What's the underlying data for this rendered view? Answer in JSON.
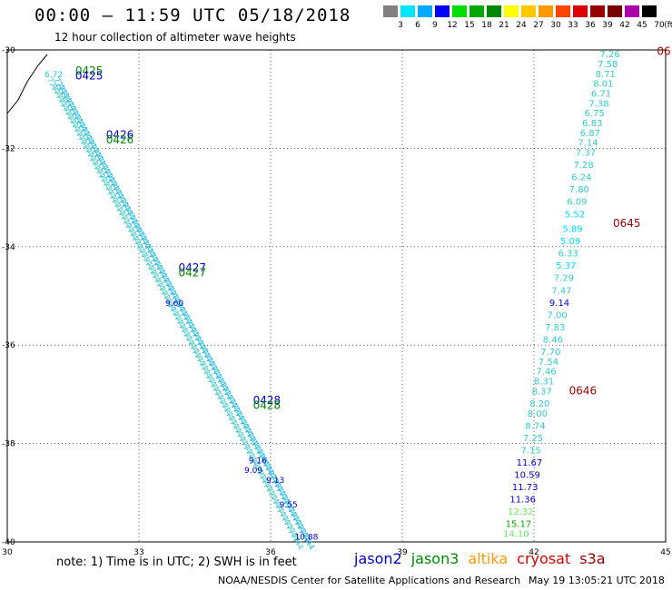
{
  "header": {
    "title": "00:00 – 11:59 UTC 05/18/2018",
    "subtitle": "12 hour collection of altimeter wave heights"
  },
  "colorbar": {
    "unit": "(ft)",
    "labels": [
      "3",
      "6",
      "9",
      "12",
      "15",
      "18",
      "21",
      "24",
      "27",
      "30",
      "33",
      "36",
      "39",
      "42",
      "45",
      "70"
    ],
    "colors": [
      "#808080",
      "#00e5ff",
      "#00aaff",
      "#0000ff",
      "#00dd00",
      "#00aa00",
      "#008800",
      "#ffff00",
      "#ffc800",
      "#ff9900",
      "#ff4400",
      "#dd0000",
      "#990000",
      "#770000",
      "#aa00aa",
      "#000000"
    ]
  },
  "footer": {
    "note": "note: 1) Time is in UTC; 2) SWH is in feet",
    "credit": "NOAA/NESDIS Center for Satellite Applications and Research",
    "timestamp": "May 19 13:05:21 UTC 2018"
  },
  "legend": [
    {
      "name": "jason2",
      "color": "#0000cc"
    },
    {
      "name": "jason3",
      "color": "#008800"
    },
    {
      "name": "altika",
      "color": "#ff9900"
    },
    {
      "name": "cryosat",
      "color": "#dd0000"
    },
    {
      "name": "s3a",
      "color": "#990000"
    }
  ],
  "chart_data": {
    "type": "scatter",
    "xlim": [
      30,
      45
    ],
    "ylim": [
      -40,
      -30
    ],
    "x_ticks": [
      "30",
      "33",
      "36",
      "39",
      "42",
      "45"
    ],
    "y_ticks": [
      "-30",
      "-32",
      "-34",
      "-36",
      "-38",
      "-40"
    ],
    "grid": true,
    "time_labels": [
      {
        "text": "0425",
        "x": 31.55,
        "y": -30.5,
        "color": "#008800"
      },
      {
        "text": "0425",
        "x": 31.55,
        "y": -30.6,
        "color": "#0000cc"
      },
      {
        "text": "0426",
        "x": 32.25,
        "y": -31.8,
        "color": "#0000cc"
      },
      {
        "text": "0426",
        "x": 32.25,
        "y": -31.9,
        "color": "#008800"
      },
      {
        "text": "0427",
        "x": 33.9,
        "y": -34.5,
        "color": "#0000cc"
      },
      {
        "text": "0427",
        "x": 33.9,
        "y": -34.6,
        "color": "#008800"
      },
      {
        "text": "0428",
        "x": 35.6,
        "y": -37.2,
        "color": "#0000cc"
      },
      {
        "text": "0428",
        "x": 35.6,
        "y": -37.3,
        "color": "#008800"
      },
      {
        "text": "0645",
        "x": 43.8,
        "y": -33.6,
        "color": "#990000"
      },
      {
        "text": "0646",
        "x": 42.8,
        "y": -37.0,
        "color": "#990000"
      },
      {
        "text": "06",
        "x": 44.8,
        "y": -30.1,
        "color": "#990000"
      }
    ],
    "west_track_labels": [
      {
        "text": "6.72",
        "x": 30.85,
        "y": -30.55,
        "color": "#33cccc"
      },
      {
        "text": "9.60",
        "x": 33.6,
        "y": -35.2,
        "color": "#0000cc"
      },
      {
        "text": "9.16",
        "x": 35.5,
        "y": -38.4,
        "color": "#0000cc"
      },
      {
        "text": "9.09",
        "x": 35.4,
        "y": -38.6,
        "color": "#0000cc"
      },
      {
        "text": "9.13",
        "x": 35.9,
        "y": -38.8,
        "color": "#0000cc"
      },
      {
        "text": "9.55",
        "x": 36.2,
        "y": -39.3,
        "color": "#0000cc"
      },
      {
        "text": "10.88",
        "x": 36.55,
        "y": -39.95,
        "color": "#0000cc"
      }
    ],
    "east_track": [
      {
        "text": "7.26",
        "x": 43.5,
        "y": -30.15,
        "color": "#33cccc"
      },
      {
        "text": "7.58",
        "x": 43.45,
        "y": -30.35,
        "color": "#33cccc"
      },
      {
        "text": "8.71",
        "x": 43.4,
        "y": -30.55,
        "color": "#33cccc"
      },
      {
        "text": "8.01",
        "x": 43.35,
        "y": -30.75,
        "color": "#33cccc"
      },
      {
        "text": "6.71",
        "x": 43.3,
        "y": -30.95,
        "color": "#33cccc"
      },
      {
        "text": "7.38",
        "x": 43.25,
        "y": -31.15,
        "color": "#33cccc"
      },
      {
        "text": "6.75",
        "x": 43.15,
        "y": -31.35,
        "color": "#33cccc"
      },
      {
        "text": "6.83",
        "x": 43.1,
        "y": -31.55,
        "color": "#33cccc"
      },
      {
        "text": "6.87",
        "x": 43.05,
        "y": -31.75,
        "color": "#33cccc"
      },
      {
        "text": "7.14",
        "x": 43.0,
        "y": -31.95,
        "color": "#33cccc"
      },
      {
        "text": "7.37",
        "x": 42.95,
        "y": -32.15,
        "color": "#33cccc"
      },
      {
        "text": "7.28",
        "x": 42.9,
        "y": -32.4,
        "color": "#33cccc"
      },
      {
        "text": "6.24",
        "x": 42.85,
        "y": -32.65,
        "color": "#33cccc"
      },
      {
        "text": "7.80",
        "x": 42.8,
        "y": -32.9,
        "color": "#33cccc"
      },
      {
        "text": "6.09",
        "x": 42.75,
        "y": -33.15,
        "color": "#33cccc"
      },
      {
        "text": "5.52",
        "x": 42.7,
        "y": -33.4,
        "color": "#00ddff"
      },
      {
        "text": "5.89",
        "x": 42.65,
        "y": -33.7,
        "color": "#00ddff"
      },
      {
        "text": "5.09",
        "x": 42.6,
        "y": -33.95,
        "color": "#00ddff"
      },
      {
        "text": "6.33",
        "x": 42.55,
        "y": -34.2,
        "color": "#33cccc"
      },
      {
        "text": "5.37",
        "x": 42.5,
        "y": -34.45,
        "color": "#00ddff"
      },
      {
        "text": "7.29",
        "x": 42.45,
        "y": -34.7,
        "color": "#33cccc"
      },
      {
        "text": "7.47",
        "x": 42.4,
        "y": -34.95,
        "color": "#33cccc"
      },
      {
        "text": "9.14",
        "x": 42.35,
        "y": -35.2,
        "color": "#0000cc"
      },
      {
        "text": "7.00",
        "x": 42.3,
        "y": -35.45,
        "color": "#33cccc"
      },
      {
        "text": "7.83",
        "x": 42.25,
        "y": -35.7,
        "color": "#33cccc"
      },
      {
        "text": "8.46",
        "x": 42.2,
        "y": -35.95,
        "color": "#33cccc"
      },
      {
        "text": "7.70",
        "x": 42.15,
        "y": -36.2,
        "color": "#33cccc"
      },
      {
        "text": "7.54",
        "x": 42.1,
        "y": -36.4,
        "color": "#33cccc"
      },
      {
        "text": "7.46",
        "x": 42.05,
        "y": -36.6,
        "color": "#33cccc"
      },
      {
        "text": "8.31",
        "x": 42.0,
        "y": -36.8,
        "color": "#33cccc"
      },
      {
        "text": "8.37",
        "x": 41.95,
        "y": -37.0,
        "color": "#33cccc"
      },
      {
        "text": "8.20",
        "x": 41.9,
        "y": -37.25,
        "color": "#33cccc"
      },
      {
        "text": "8.00",
        "x": 41.85,
        "y": -37.45,
        "color": "#33cccc"
      },
      {
        "text": "8.74",
        "x": 41.8,
        "y": -37.7,
        "color": "#33cccc"
      },
      {
        "text": "7.25",
        "x": 41.75,
        "y": -37.95,
        "color": "#33cccc"
      },
      {
        "text": "7.15",
        "x": 41.7,
        "y": -38.2,
        "color": "#33cccc"
      },
      {
        "text": "11.67",
        "x": 41.6,
        "y": -38.45,
        "color": "#0000cc"
      },
      {
        "text": "10.59",
        "x": 41.55,
        "y": -38.7,
        "color": "#0000cc"
      },
      {
        "text": "11.73",
        "x": 41.5,
        "y": -38.95,
        "color": "#0000cc"
      },
      {
        "text": "11.36",
        "x": 41.45,
        "y": -39.2,
        "color": "#0000cc"
      },
      {
        "text": "12.32",
        "x": 41.4,
        "y": -39.45,
        "color": "#66ee66"
      },
      {
        "text": "15.17",
        "x": 41.35,
        "y": -39.7,
        "color": "#00aa00"
      },
      {
        "text": "14.10",
        "x": 41.3,
        "y": -39.9,
        "color": "#66ee66"
      }
    ]
  }
}
